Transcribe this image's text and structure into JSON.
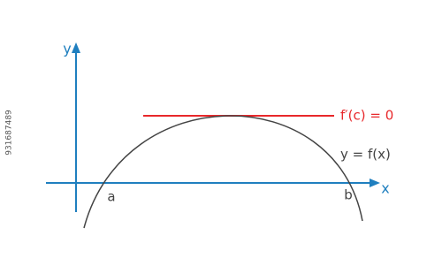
{
  "labels": {
    "y_axis": "y",
    "x_axis": "x",
    "a": "a",
    "b": "b",
    "tangent": "f′(c) = 0",
    "curve": "y = f(x)"
  },
  "side_id": "931687489"
}
